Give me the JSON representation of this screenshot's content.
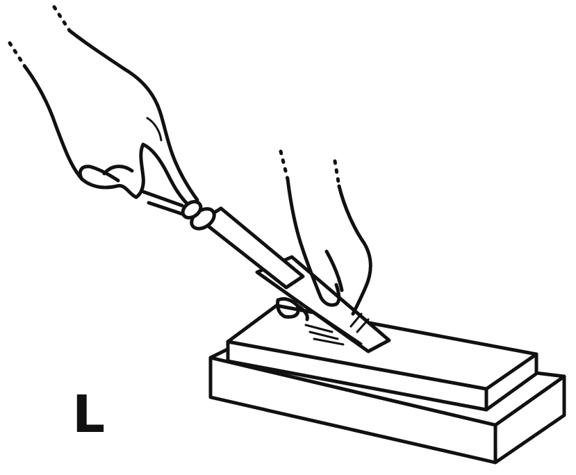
{
  "figure": {
    "letter": "L"
  },
  "colors": {
    "ink": "#111111",
    "paper": "#ffffff"
  }
}
